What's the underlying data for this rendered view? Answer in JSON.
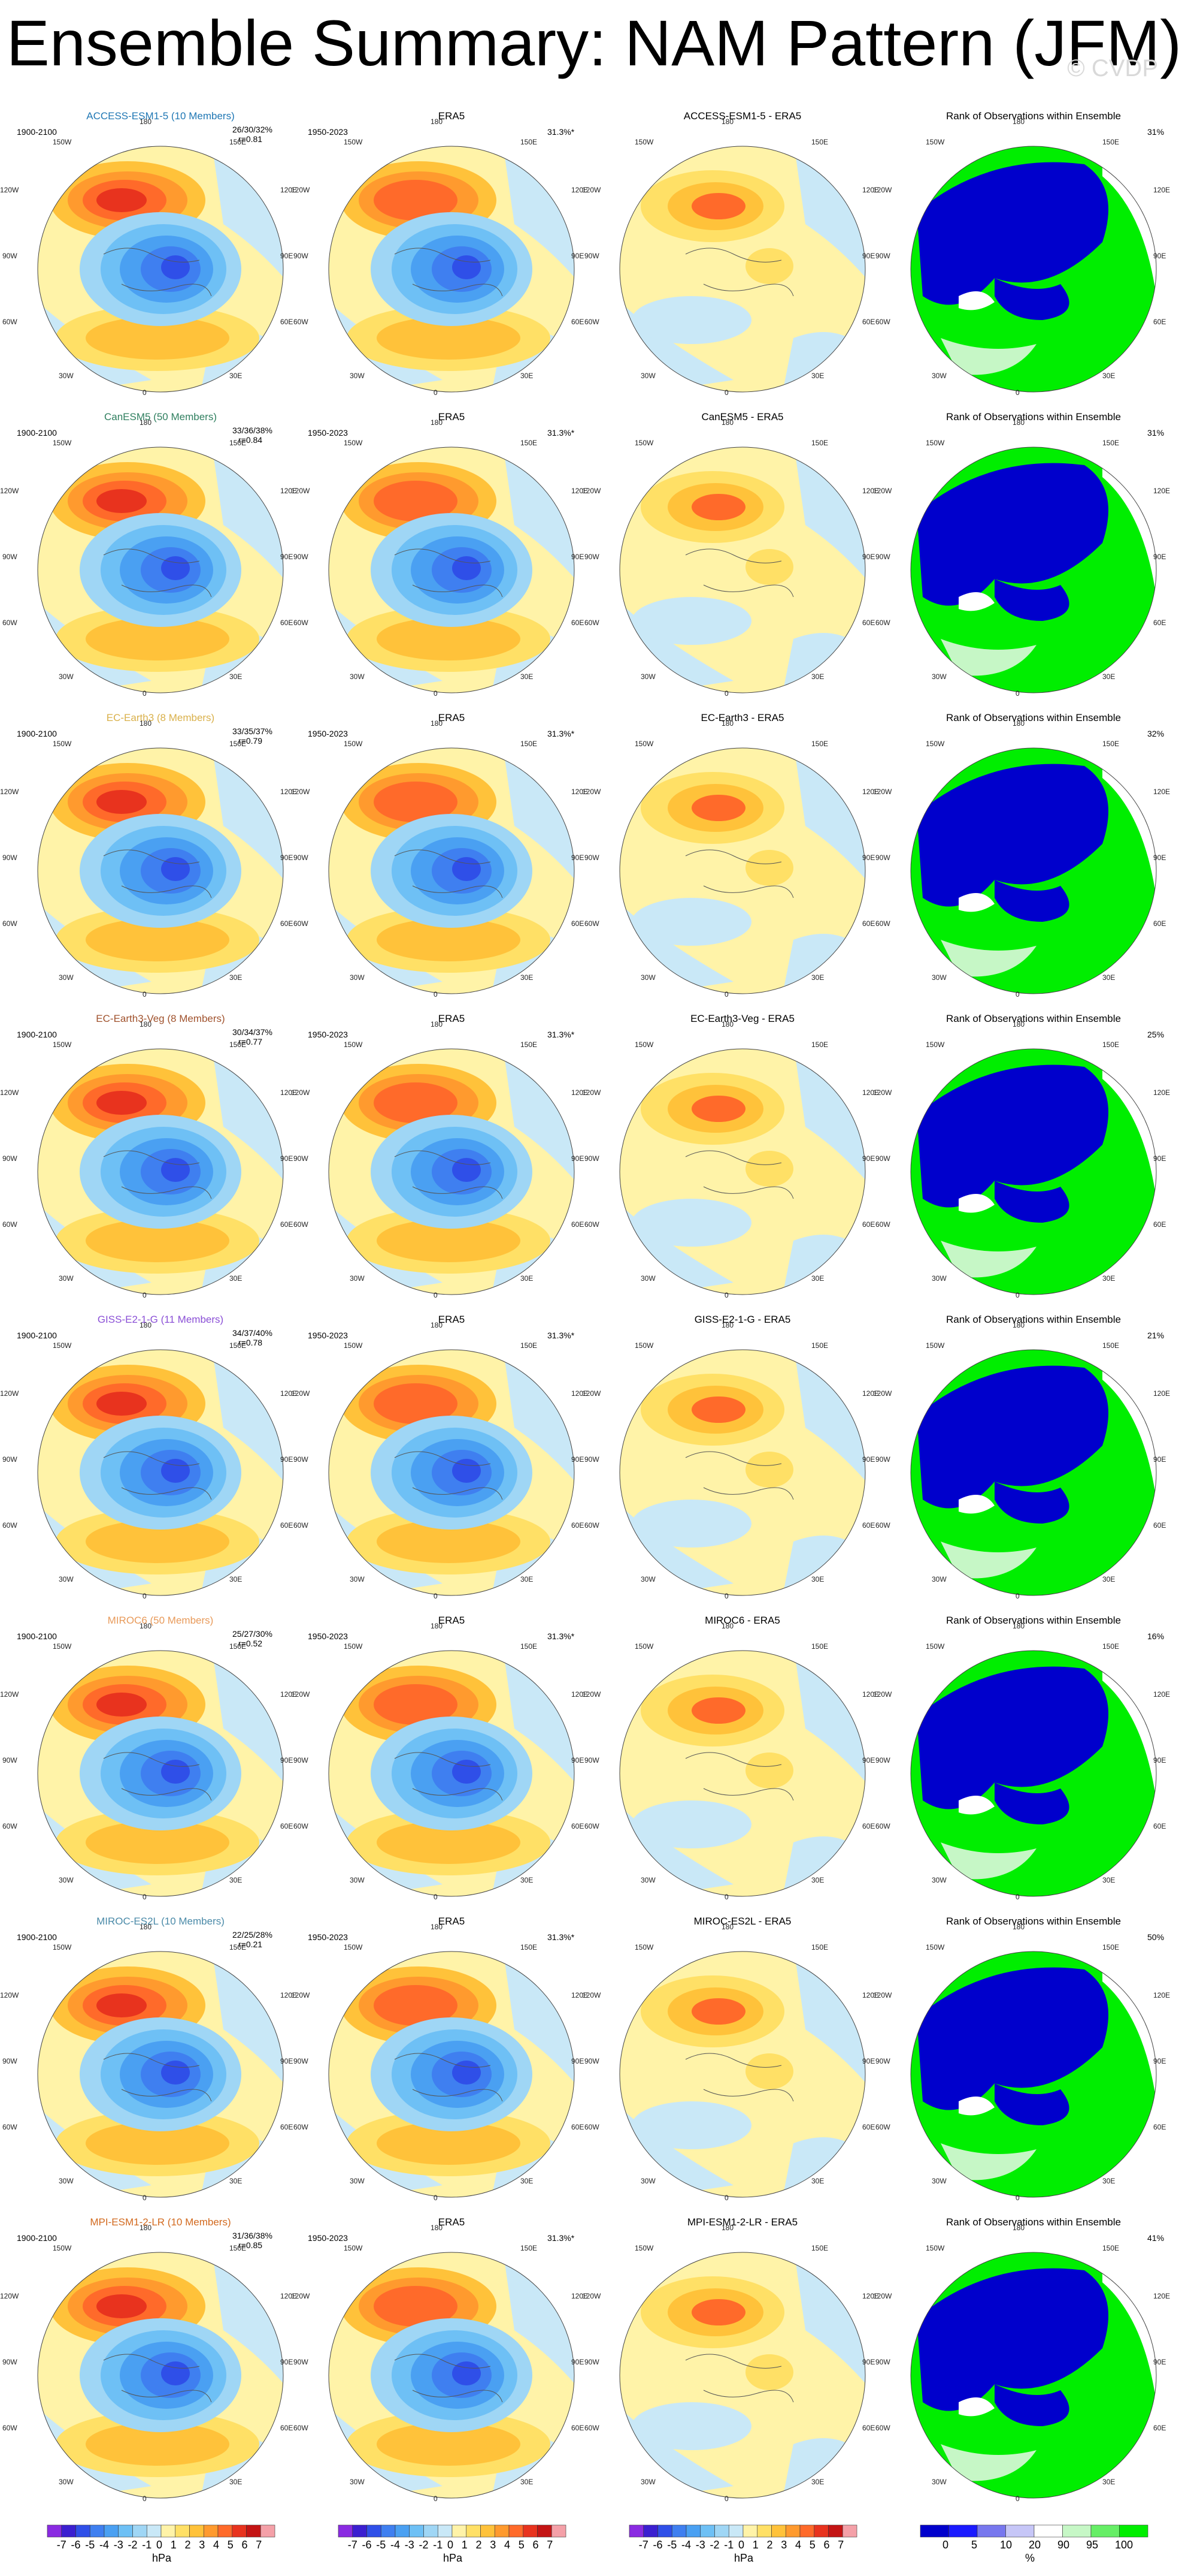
{
  "title": "Ensemble Summary: NAM Pattern (JFM)",
  "watermark": "© CVDP",
  "column_titles": {
    "obs": "ERA5",
    "rank": "Rank of Observations within Ensemble"
  },
  "period_model": "1900-2100",
  "period_obs": "1950-2023",
  "obs_pct": "31.3%*",
  "lon_labels": {
    "top": "180",
    "top_left": "150W",
    "top_right": "150E",
    "left_upper": "120W",
    "right_upper": "120E",
    "left_mid": "90W",
    "right_mid": "90E",
    "left_lower": "60W",
    "right_lower": "60E",
    "bottom_left": "30W",
    "bottom_right": "30E",
    "bottom": "0"
  },
  "rows": [
    {
      "model": "ACCESS-ESM1-5 (10 Members)",
      "color": "#1f77b4",
      "pcts": "26/30/32%",
      "r": "r=0.81",
      "diff_title": "ACCESS-ESM1-5 - ERA5",
      "rank_pct": "31%"
    },
    {
      "model": "CanESM5 (50 Members)",
      "color": "#2f7f5f",
      "pcts": "33/36/38%",
      "r": "r=0.84",
      "diff_title": "CanESM5 - ERA5",
      "rank_pct": "31%"
    },
    {
      "model": "EC-Earth3 (8 Members)",
      "color": "#d9b04a",
      "pcts": "33/35/37%",
      "r": "r=0.79",
      "diff_title": "EC-Earth3 - ERA5",
      "rank_pct": "32%"
    },
    {
      "model": "EC-Earth3-Veg (8 Members)",
      "color": "#a0522d",
      "pcts": "30/34/37%",
      "r": "r=0.77",
      "diff_title": "EC-Earth3-Veg - ERA5",
      "rank_pct": "25%"
    },
    {
      "model": "GISS-E2-1-G (11 Members)",
      "color": "#8a4fd6",
      "pcts": "34/37/40%",
      "r": "r=0.78",
      "diff_title": "GISS-E2-1-G - ERA5",
      "rank_pct": "21%"
    },
    {
      "model": "MIROC6 (50 Members)",
      "color": "#e89a5a",
      "pcts": "25/27/30%",
      "r": "r=0.52",
      "diff_title": "MIROC6 - ERA5",
      "rank_pct": "16%"
    },
    {
      "model": "MIROC-ES2L (10 Members)",
      "color": "#4a8aa8",
      "pcts": "22/25/28%",
      "r": "r=0.21",
      "diff_title": "MIROC-ES2L - ERA5",
      "rank_pct": "50%"
    },
    {
      "model": "MPI-ESM1-2-LR (10 Members)",
      "color": "#d2691e",
      "pcts": "31/36/38%",
      "r": "r=0.85",
      "diff_title": "MPI-ESM1-2-LR - ERA5",
      "rank_pct": "41%"
    }
  ],
  "colorbar_hpa": {
    "labels": [
      "-7",
      "-6",
      "-5",
      "-4",
      "-3",
      "-2",
      "-1",
      "0",
      "1",
      "2",
      "3",
      "4",
      "5",
      "6",
      "7"
    ],
    "unit": "hPa",
    "colors": [
      "#8a2be2",
      "#3b1fd0",
      "#2f4fe8",
      "#3f7ff0",
      "#4aa0f2",
      "#6ec0f5",
      "#9fd6f5",
      "#c9e8f7",
      "#fff3a8",
      "#ffe066",
      "#ffc23a",
      "#ff9a2e",
      "#ff6a2a",
      "#e8331e",
      "#c41414",
      "#f4a0a8"
    ]
  },
  "colorbar_pct": {
    "labels": [
      "0",
      "5",
      "10",
      "20",
      "90",
      "95",
      "100"
    ],
    "unit": "%",
    "colors": [
      "#0000cc",
      "#1a1aff",
      "#7777ee",
      "#c6c6f7",
      "#ffffff",
      "#c6f7c6",
      "#66ee66",
      "#00ee00"
    ]
  }
}
